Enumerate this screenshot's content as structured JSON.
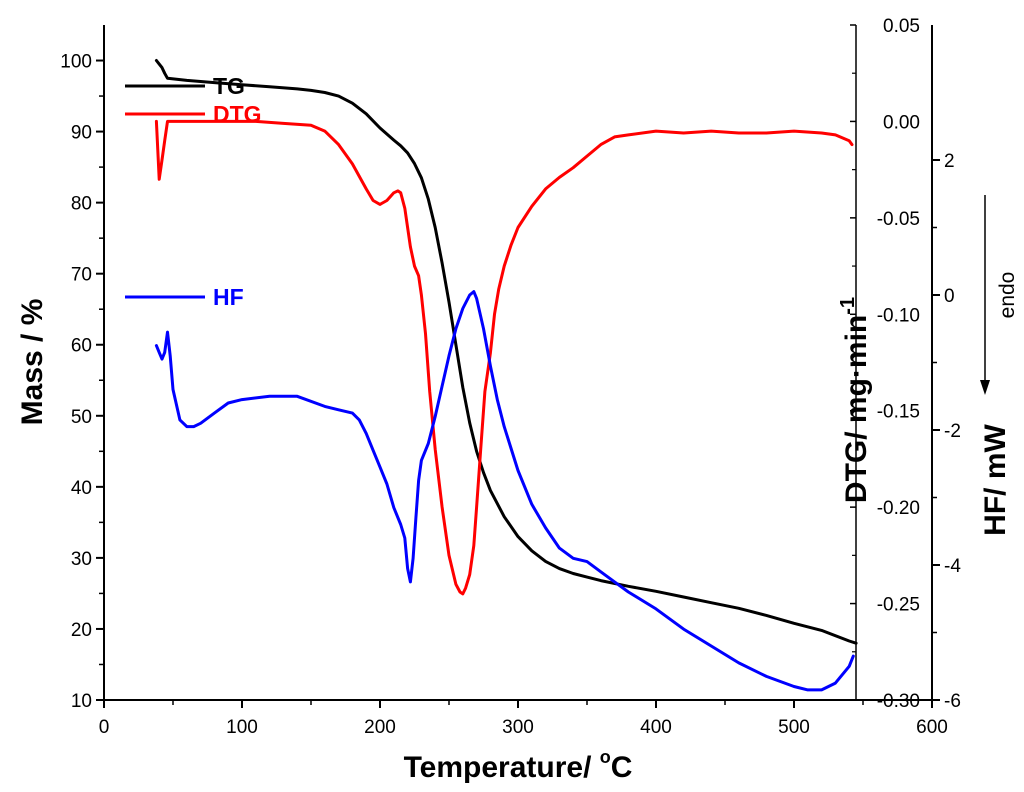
{
  "chart_data": {
    "type": "line",
    "title": "",
    "xlabel": "Temperature/ °C",
    "ylabel_left": "Mass / %",
    "ylabel_right_dtg": "DTG/ mg·min",
    "ylabel_right_dtg_sup": "-1",
    "ylabel_right_hf": "HF/ mW",
    "annotation": "endo",
    "xlim": [
      0,
      600
    ],
    "x_ticks": [
      "0",
      "100",
      "200",
      "300",
      "400",
      "500",
      "600"
    ],
    "mass_ylim": [
      10,
      105
    ],
    "mass_ticks": [
      "10",
      "20",
      "30",
      "40",
      "50",
      "60",
      "70",
      "80",
      "90",
      "100"
    ],
    "dtg_ylim": [
      -0.3,
      0.05
    ],
    "dtg_ticks": [
      "0.05",
      "0.00",
      "-0.05",
      "-0.10",
      "-0.15",
      "-0.20",
      "-0.25",
      "-0.30"
    ],
    "hf_ylim": [
      -6,
      4
    ],
    "hf_ticks": [
      "2",
      "0",
      "-2",
      "-4",
      "-6"
    ],
    "series": [
      {
        "name": "TG",
        "color": "#000000",
        "axis": "mass",
        "x": [
          38,
          40,
          42,
          44,
          46,
          60,
          80,
          100,
          120,
          140,
          150,
          160,
          170,
          180,
          190,
          200,
          210,
          215,
          220,
          225,
          230,
          235,
          240,
          245,
          250,
          255,
          260,
          265,
          270,
          275,
          280,
          290,
          300,
          310,
          320,
          330,
          340,
          350,
          360,
          380,
          400,
          420,
          440,
          460,
          480,
          500,
          520,
          540,
          545
        ],
        "y": [
          100,
          99.5,
          99,
          98.2,
          97.5,
          97.2,
          96.9,
          96.6,
          96.3,
          96.0,
          95.8,
          95.5,
          95.0,
          94.0,
          92.5,
          90.5,
          88.8,
          88.0,
          87.0,
          85.5,
          83.5,
          80.5,
          76.5,
          71.5,
          66.0,
          60.0,
          54.0,
          49.0,
          45.0,
          42.0,
          39.5,
          35.8,
          33.0,
          31.0,
          29.5,
          28.5,
          27.8,
          27.3,
          26.8,
          26.0,
          25.3,
          24.5,
          23.7,
          22.9,
          21.9,
          20.8,
          19.8,
          18.3,
          18.0
        ]
      },
      {
        "name": "DTG",
        "color": "#ff0000",
        "axis": "dtg",
        "x": [
          38,
          40,
          42,
          44,
          46,
          48,
          55,
          70,
          90,
          110,
          130,
          150,
          160,
          170,
          180,
          190,
          195,
          200,
          205,
          210,
          213,
          215,
          218,
          220,
          222,
          225,
          228,
          230,
          233,
          236,
          240,
          245,
          250,
          255,
          258,
          260,
          262,
          265,
          268,
          270,
          273,
          276,
          280,
          283,
          286,
          290,
          295,
          300,
          310,
          320,
          330,
          340,
          350,
          360,
          370,
          380,
          400,
          420,
          440,
          460,
          480,
          500,
          520,
          530,
          540,
          542
        ],
        "y": [
          0.0,
          -0.03,
          -0.02,
          -0.01,
          0.0,
          0.0,
          0.0,
          0.0,
          0.0,
          0.0,
          -0.001,
          -0.002,
          -0.005,
          -0.012,
          -0.022,
          -0.035,
          -0.041,
          -0.043,
          -0.041,
          -0.037,
          -0.036,
          -0.037,
          -0.045,
          -0.055,
          -0.065,
          -0.075,
          -0.08,
          -0.09,
          -0.11,
          -0.14,
          -0.17,
          -0.2,
          -0.225,
          -0.24,
          -0.244,
          -0.245,
          -0.242,
          -0.235,
          -0.22,
          -0.2,
          -0.17,
          -0.14,
          -0.12,
          -0.1,
          -0.087,
          -0.075,
          -0.064,
          -0.055,
          -0.044,
          -0.035,
          -0.029,
          -0.024,
          -0.018,
          -0.012,
          -0.008,
          -0.007,
          -0.005,
          -0.006,
          -0.005,
          -0.006,
          -0.006,
          -0.005,
          -0.006,
          -0.007,
          -0.01,
          -0.012
        ]
      },
      {
        "name": "HF",
        "color": "#0000ff",
        "axis": "hf",
        "x": [
          38,
          40,
          42,
          44,
          46,
          48,
          50,
          55,
          60,
          65,
          70,
          80,
          90,
          100,
          120,
          140,
          160,
          170,
          180,
          185,
          190,
          195,
          200,
          205,
          210,
          215,
          218,
          220,
          222,
          224,
          226,
          228,
          230,
          235,
          240,
          245,
          250,
          255,
          260,
          265,
          268,
          270,
          275,
          280,
          285,
          290,
          300,
          310,
          320,
          330,
          340,
          350,
          360,
          370,
          380,
          400,
          420,
          440,
          460,
          480,
          500,
          510,
          520,
          530,
          540,
          543
        ],
        "y": [
          -0.75,
          -0.85,
          -0.95,
          -0.85,
          -0.55,
          -0.9,
          -1.4,
          -1.85,
          -1.95,
          -1.95,
          -1.9,
          -1.75,
          -1.6,
          -1.55,
          -1.5,
          -1.5,
          -1.65,
          -1.7,
          -1.75,
          -1.85,
          -2.05,
          -2.3,
          -2.55,
          -2.8,
          -3.15,
          -3.4,
          -3.6,
          -4.05,
          -4.25,
          -3.9,
          -3.3,
          -2.75,
          -2.45,
          -2.2,
          -1.8,
          -1.35,
          -0.9,
          -0.5,
          -0.2,
          0.0,
          0.05,
          -0.05,
          -0.5,
          -1.05,
          -1.55,
          -1.95,
          -2.6,
          -3.1,
          -3.45,
          -3.75,
          -3.9,
          -3.95,
          -4.1,
          -4.25,
          -4.4,
          -4.65,
          -4.95,
          -5.2,
          -5.45,
          -5.65,
          -5.8,
          -5.85,
          -5.85,
          -5.75,
          -5.5,
          -5.35
        ]
      }
    ]
  }
}
